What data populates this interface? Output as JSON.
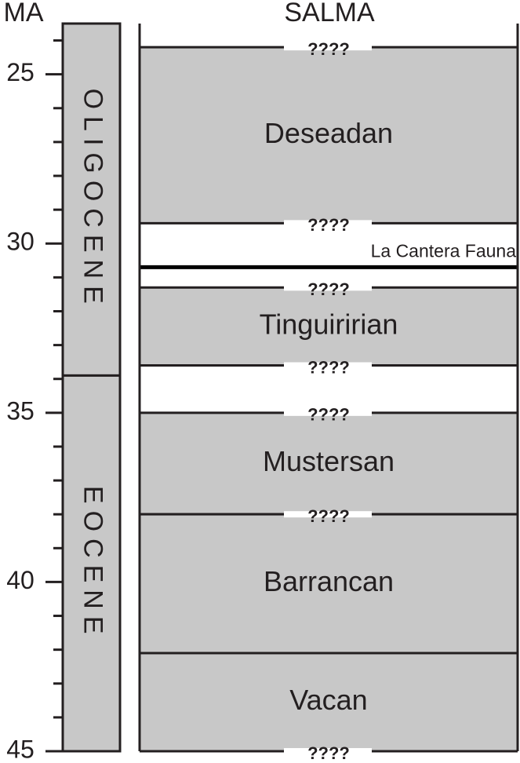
{
  "axis": {
    "label": "MA",
    "ylim": [
      23.5,
      45
    ],
    "ticks": [
      25,
      30,
      35,
      40,
      45
    ],
    "minor_ticks": [
      24,
      26,
      27,
      28,
      29,
      31,
      32,
      33,
      34,
      36,
      37,
      38,
      39,
      41,
      42,
      43,
      44
    ]
  },
  "epochs": [
    {
      "name": "OLIGOCENE",
      "start": 23.5,
      "end": 33.9
    },
    {
      "name": "EOCENE",
      "start": 33.9,
      "end": 45
    }
  ],
  "column_title": "SALMA",
  "stages": [
    {
      "name": "Deseadan",
      "start": 24.2,
      "end": 29.4
    },
    {
      "name": "Tinguiririan",
      "start": 31.3,
      "end": 33.6
    },
    {
      "name": "Mustersan",
      "start": 35.0,
      "end": 38.0
    },
    {
      "name": "Barrancan",
      "start": 38.0,
      "end": 42.1
    },
    {
      "name": "Vacan",
      "start": 42.1,
      "end": 45
    }
  ],
  "uncertain_boundaries": [
    {
      "label": "????",
      "age": 24.2
    },
    {
      "label": "????",
      "age": 29.4
    },
    {
      "label": "????",
      "age": 31.3
    },
    {
      "label": "????",
      "age": 33.6
    },
    {
      "label": "????",
      "age": 35.0
    },
    {
      "label": "????",
      "age": 38.0
    },
    {
      "label": "????",
      "age": 45
    }
  ],
  "events": [
    {
      "label": "La Cantera Fauna",
      "age": 30.7
    }
  ]
}
